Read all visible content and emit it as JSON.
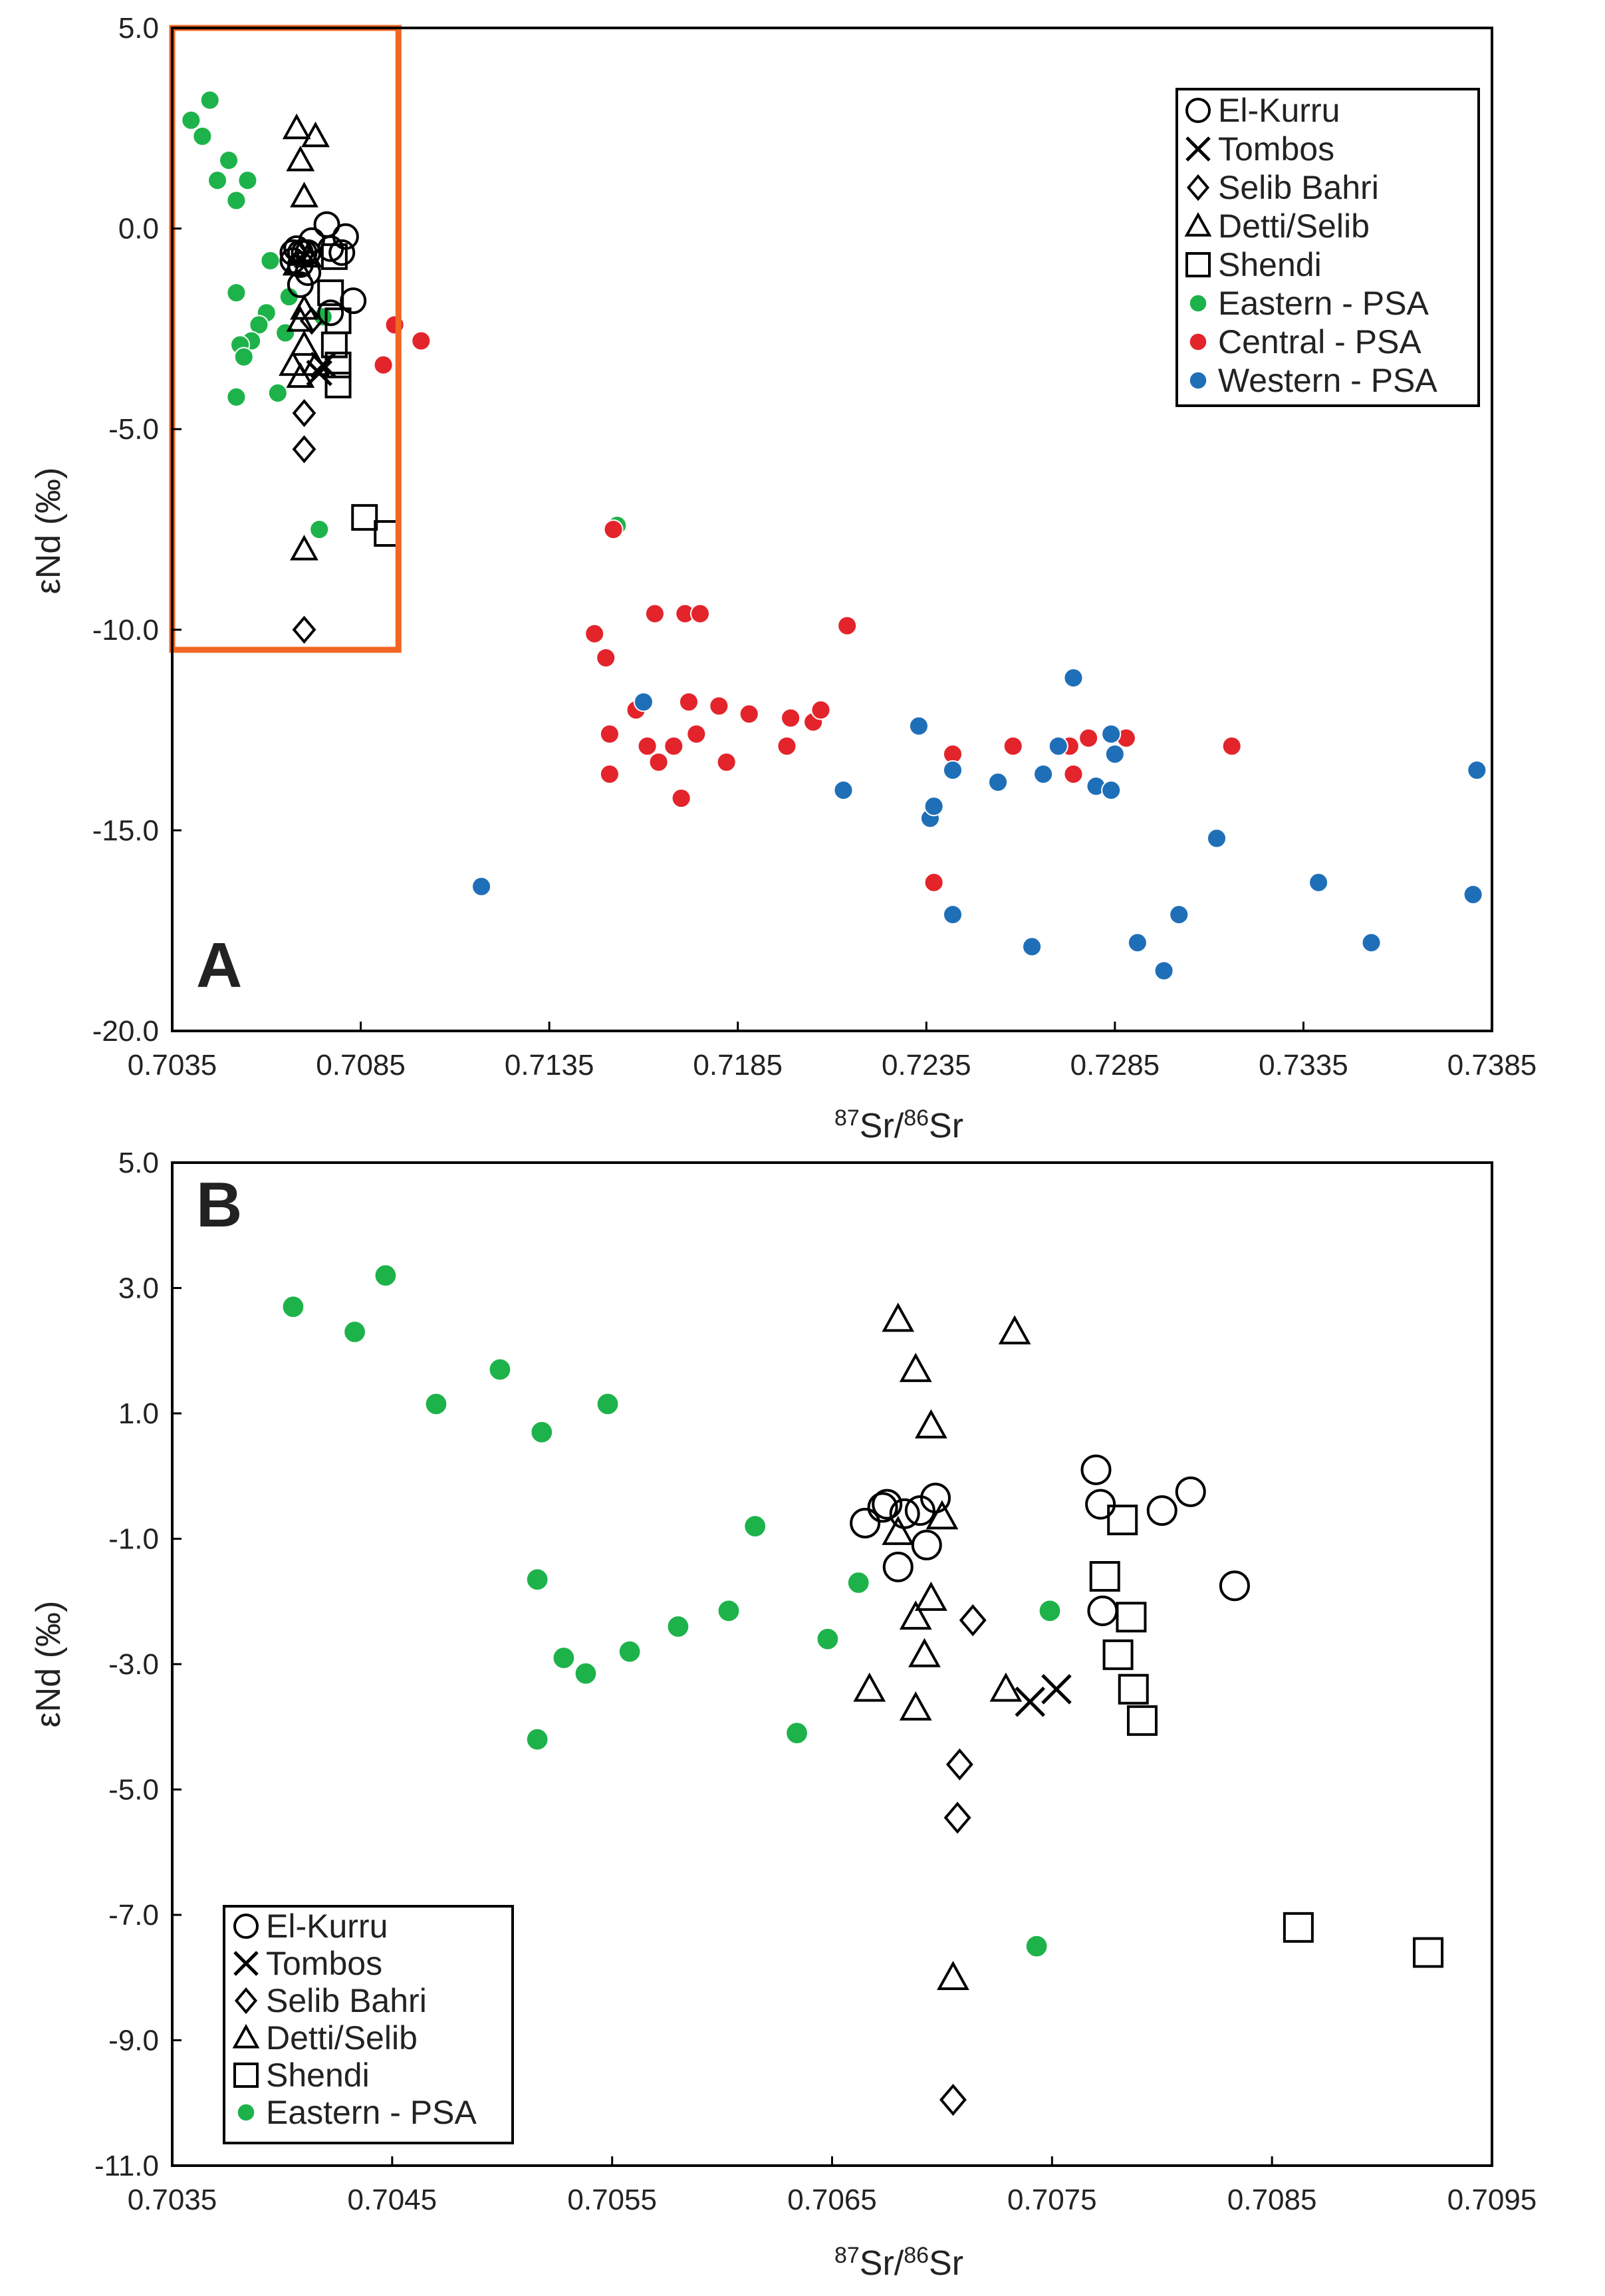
{
  "figure": {
    "colors": {
      "eastern": "#1db34a",
      "central": "#e3242b",
      "western": "#1f6fb8",
      "highlight_box": "#f26522",
      "axis": "#000000"
    }
  },
  "chart_data": [
    {
      "panel": "A",
      "type": "scatter",
      "xlabel_sup1": "87",
      "xlabel_main1": "Sr/",
      "xlabel_sup2": "86",
      "xlabel_main2": "Sr",
      "ylabel": "εNd (‰)",
      "xlim": [
        0.7035,
        0.7385
      ],
      "ylim": [
        -20.0,
        5.0
      ],
      "x_ticks": [
        "0.7035",
        "0.7085",
        "0.7135",
        "0.7185",
        "0.7235",
        "0.7285",
        "0.7335",
        "0.7385"
      ],
      "y_ticks": [
        "5.0",
        "0.0",
        "-5.0",
        "-10.0",
        "-15.0",
        "-20.0"
      ],
      "grid": false,
      "legend_position": "top-right",
      "highlight_box": {
        "x": [
          0.7035,
          0.7095
        ],
        "y": [
          -10.5,
          5.0
        ]
      },
      "series": [
        {
          "name": "El-Kurru",
          "marker": "circle-open",
          "points": [
            [
              0.7067,
              -0.8
            ],
            [
              0.7067,
              -0.6
            ],
            [
              0.7068,
              -0.5
            ],
            [
              0.7069,
              -0.6
            ],
            [
              0.7069,
              -1.4
            ],
            [
              0.7069,
              -0.9
            ],
            [
              0.707,
              -0.6
            ],
            [
              0.7071,
              -0.6
            ],
            [
              0.7071,
              -1.1
            ],
            [
              0.7072,
              -0.3
            ],
            [
              0.7076,
              0.1
            ],
            [
              0.7077,
              -0.5
            ],
            [
              0.7077,
              -2.1
            ],
            [
              0.708,
              -0.6
            ],
            [
              0.7081,
              -0.2
            ],
            [
              0.7083,
              -1.8
            ]
          ]
        },
        {
          "name": "Tombos",
          "marker": "x",
          "points": [
            [
              0.7074,
              -3.6
            ],
            [
              0.7075,
              -3.4
            ]
          ]
        },
        {
          "name": "Selib Bahri",
          "marker": "diamond-open",
          "points": [
            [
              0.7072,
              -2.3
            ],
            [
              0.707,
              -4.6
            ],
            [
              0.707,
              -5.5
            ],
            [
              0.707,
              -10.0
            ]
          ]
        },
        {
          "name": "Detti/Selib",
          "marker": "triangle-open",
          "points": [
            [
              0.7068,
              2.5
            ],
            [
              0.7073,
              2.3
            ],
            [
              0.7069,
              1.7
            ],
            [
              0.707,
              0.8
            ],
            [
              0.7071,
              -0.7
            ],
            [
              0.7068,
              -0.9
            ],
            [
              0.707,
              -2.0
            ],
            [
              0.7069,
              -2.3
            ],
            [
              0.707,
              -2.9
            ],
            [
              0.7067,
              -3.4
            ],
            [
              0.7073,
              -3.4
            ],
            [
              0.7069,
              -3.7
            ],
            [
              0.707,
              -8.0
            ]
          ]
        },
        {
          "name": "Shendi",
          "marker": "square-open",
          "points": [
            [
              0.7078,
              -0.7
            ],
            [
              0.7077,
              -1.6
            ],
            [
              0.7079,
              -2.3
            ],
            [
              0.7078,
              -2.9
            ],
            [
              0.7079,
              -3.4
            ],
            [
              0.7079,
              -3.9
            ],
            [
              0.7086,
              -7.2
            ],
            [
              0.7092,
              -7.6
            ]
          ]
        },
        {
          "name": "Eastern - PSA",
          "marker": "dot",
          "color": "#1db34a",
          "points": [
            [
              0.704,
              2.7
            ],
            [
              0.7043,
              2.3
            ],
            [
              0.7045,
              3.2
            ],
            [
              0.7047,
              1.2
            ],
            [
              0.705,
              1.7
            ],
            [
              0.7052,
              0.7
            ],
            [
              0.7055,
              1.2
            ],
            [
              0.7052,
              -1.6
            ],
            [
              0.7061,
              -0.8
            ],
            [
              0.706,
              -2.1
            ],
            [
              0.7058,
              -2.4
            ],
            [
              0.7056,
              -2.8
            ],
            [
              0.7053,
              -2.9
            ],
            [
              0.7054,
              -3.2
            ],
            [
              0.7052,
              -4.2
            ],
            [
              0.7063,
              -4.1
            ],
            [
              0.7065,
              -2.6
            ],
            [
              0.7066,
              -1.7
            ],
            [
              0.7075,
              -2.2
            ],
            [
              0.7074,
              -7.5
            ],
            [
              0.7153,
              -7.4
            ]
          ]
        },
        {
          "name": "Central - PSA",
          "marker": "dot",
          "color": "#e3242b",
          "points": [
            [
              0.7094,
              -2.4
            ],
            [
              0.7101,
              -2.8
            ],
            [
              0.7091,
              -3.4
            ],
            [
              0.7152,
              -7.5
            ],
            [
              0.7147,
              -10.1
            ],
            [
              0.715,
              -10.7
            ],
            [
              0.7163,
              -9.6
            ],
            [
              0.7171,
              -9.6
            ],
            [
              0.7175,
              -9.6
            ],
            [
              0.7214,
              -9.9
            ],
            [
              0.7151,
              -12.6
            ],
            [
              0.7151,
              -13.6
            ],
            [
              0.7158,
              -12.0
            ],
            [
              0.7161,
              -12.9
            ],
            [
              0.7164,
              -13.3
            ],
            [
              0.7168,
              -12.9
            ],
            [
              0.717,
              -14.2
            ],
            [
              0.7172,
              -11.8
            ],
            [
              0.7174,
              -12.6
            ],
            [
              0.718,
              -11.9
            ],
            [
              0.7182,
              -13.3
            ],
            [
              0.7188,
              -12.1
            ],
            [
              0.7198,
              -12.9
            ],
            [
              0.7199,
              -12.2
            ],
            [
              0.7205,
              -12.3
            ],
            [
              0.7207,
              -12.0
            ],
            [
              0.7242,
              -13.1
            ],
            [
              0.7258,
              -12.9
            ],
            [
              0.7273,
              -12.9
            ],
            [
              0.7274,
              -13.6
            ],
            [
              0.7278,
              -12.7
            ],
            [
              0.7288,
              -12.7
            ],
            [
              0.7316,
              -12.9
            ],
            [
              0.7237,
              -16.3
            ]
          ]
        },
        {
          "name": "Western - PSA",
          "marker": "dot",
          "color": "#1f6fb8",
          "points": [
            [
              0.7117,
              -16.4
            ],
            [
              0.716,
              -11.8
            ],
            [
              0.7213,
              -14.0
            ],
            [
              0.7233,
              -12.4
            ],
            [
              0.7242,
              -13.5
            ],
            [
              0.7236,
              -14.7
            ],
            [
              0.7237,
              -14.4
            ],
            [
              0.7254,
              -13.8
            ],
            [
              0.7266,
              -13.6
            ],
            [
              0.727,
              -12.9
            ],
            [
              0.7274,
              -11.2
            ],
            [
              0.728,
              -13.9
            ],
            [
              0.7284,
              -14.0
            ],
            [
              0.7284,
              -12.6
            ],
            [
              0.7285,
              -13.1
            ],
            [
              0.7242,
              -17.1
            ],
            [
              0.7263,
              -17.9
            ],
            [
              0.7291,
              -17.8
            ],
            [
              0.7298,
              -18.5
            ],
            [
              0.7302,
              -17.1
            ],
            [
              0.7312,
              -15.2
            ],
            [
              0.7339,
              -16.3
            ],
            [
              0.7353,
              -17.8
            ],
            [
              0.738,
              -16.6
            ],
            [
              0.7381,
              -13.5
            ]
          ]
        }
      ]
    },
    {
      "panel": "B",
      "type": "scatter",
      "xlabel_sup1": "87",
      "xlabel_main1": "Sr/",
      "xlabel_sup2": "86",
      "xlabel_main2": "Sr",
      "ylabel": "εNd (‰)",
      "xlim": [
        0.7035,
        0.7095
      ],
      "ylim": [
        -11.0,
        5.0
      ],
      "x_ticks": [
        "0.7035",
        "0.7045",
        "0.7055",
        "0.7065",
        "0.7075",
        "0.7085",
        "0.7095"
      ],
      "y_ticks": [
        "5.0",
        "3.0",
        "1.0",
        "-1.0",
        "-3.0",
        "-5.0",
        "-7.0",
        "-9.0",
        "-11.0"
      ],
      "grid": false,
      "legend_position": "bottom-left",
      "series": [
        {
          "name": "El-Kurru",
          "marker": "circle-open",
          "points": [
            [
              0.70665,
              -0.75
            ],
            [
              0.70673,
              -0.5
            ],
            [
              0.70675,
              -0.45
            ],
            [
              0.70683,
              -0.6
            ],
            [
              0.7068,
              -1.45
            ],
            [
              0.7069,
              -0.55
            ],
            [
              0.70693,
              -1.1
            ],
            [
              0.70697,
              -0.35
            ],
            [
              0.7077,
              0.1
            ],
            [
              0.70772,
              -0.45
            ],
            [
              0.70773,
              -2.15
            ],
            [
              0.708,
              -0.55
            ],
            [
              0.70813,
              -0.25
            ],
            [
              0.70833,
              -1.75
            ]
          ]
        },
        {
          "name": "Tombos",
          "marker": "x",
          "points": [
            [
              0.7074,
              -3.6
            ],
            [
              0.70752,
              -3.4
            ]
          ]
        },
        {
          "name": "Selib Bahri",
          "marker": "diamond-open",
          "points": [
            [
              0.70714,
              -2.3
            ],
            [
              0.70708,
              -4.6
            ],
            [
              0.70707,
              -5.45
            ],
            [
              0.70705,
              -9.95
            ]
          ]
        },
        {
          "name": "Detti/Selib",
          "marker": "triangle-open",
          "points": [
            [
              0.7068,
              2.5
            ],
            [
              0.70733,
              2.3
            ],
            [
              0.70688,
              1.7
            ],
            [
              0.70695,
              0.8
            ],
            [
              0.707,
              -0.65
            ],
            [
              0.7068,
              -0.9
            ],
            [
              0.70695,
              -1.95
            ],
            [
              0.70688,
              -2.25
            ],
            [
              0.70692,
              -2.85
            ],
            [
              0.70667,
              -3.4
            ],
            [
              0.70729,
              -3.4
            ],
            [
              0.70688,
              -3.7
            ],
            [
              0.70705,
              -8.0
            ]
          ]
        },
        {
          "name": "Shendi",
          "marker": "square-open",
          "points": [
            [
              0.70782,
              -0.7
            ],
            [
              0.70774,
              -1.6
            ],
            [
              0.70786,
              -2.25
            ],
            [
              0.7078,
              -2.85
            ],
            [
              0.70787,
              -3.4
            ],
            [
              0.70791,
              -3.9
            ],
            [
              0.70862,
              -7.2
            ],
            [
              0.70921,
              -7.6
            ]
          ]
        },
        {
          "name": "Eastern - PSA",
          "marker": "dot",
          "color": "#1db34a",
          "points": [
            [
              0.70405,
              2.7
            ],
            [
              0.70433,
              2.3
            ],
            [
              0.70447,
              3.2
            ],
            [
              0.7047,
              1.15
            ],
            [
              0.70499,
              1.7
            ],
            [
              0.70518,
              0.7
            ],
            [
              0.70548,
              1.15
            ],
            [
              0.70516,
              -1.65
            ],
            [
              0.70615,
              -0.8
            ],
            [
              0.70603,
              -2.15
            ],
            [
              0.7058,
              -2.4
            ],
            [
              0.70558,
              -2.8
            ],
            [
              0.70528,
              -2.9
            ],
            [
              0.70538,
              -3.15
            ],
            [
              0.70516,
              -4.2
            ],
            [
              0.70634,
              -4.1
            ],
            [
              0.70648,
              -2.6
            ],
            [
              0.70662,
              -1.7
            ],
            [
              0.70749,
              -2.15
            ],
            [
              0.70743,
              -7.5
            ]
          ]
        }
      ]
    }
  ],
  "legend_a": [
    "El-Kurru",
    "Tombos",
    "Selib Bahri",
    "Detti/Selib",
    "Shendi",
    "Eastern - PSA",
    "Central - PSA",
    "Western - PSA"
  ],
  "legend_b": [
    "El-Kurru",
    "Tombos",
    "Selib Bahri",
    "Detti/Selib",
    "Shendi",
    "Eastern - PSA"
  ]
}
